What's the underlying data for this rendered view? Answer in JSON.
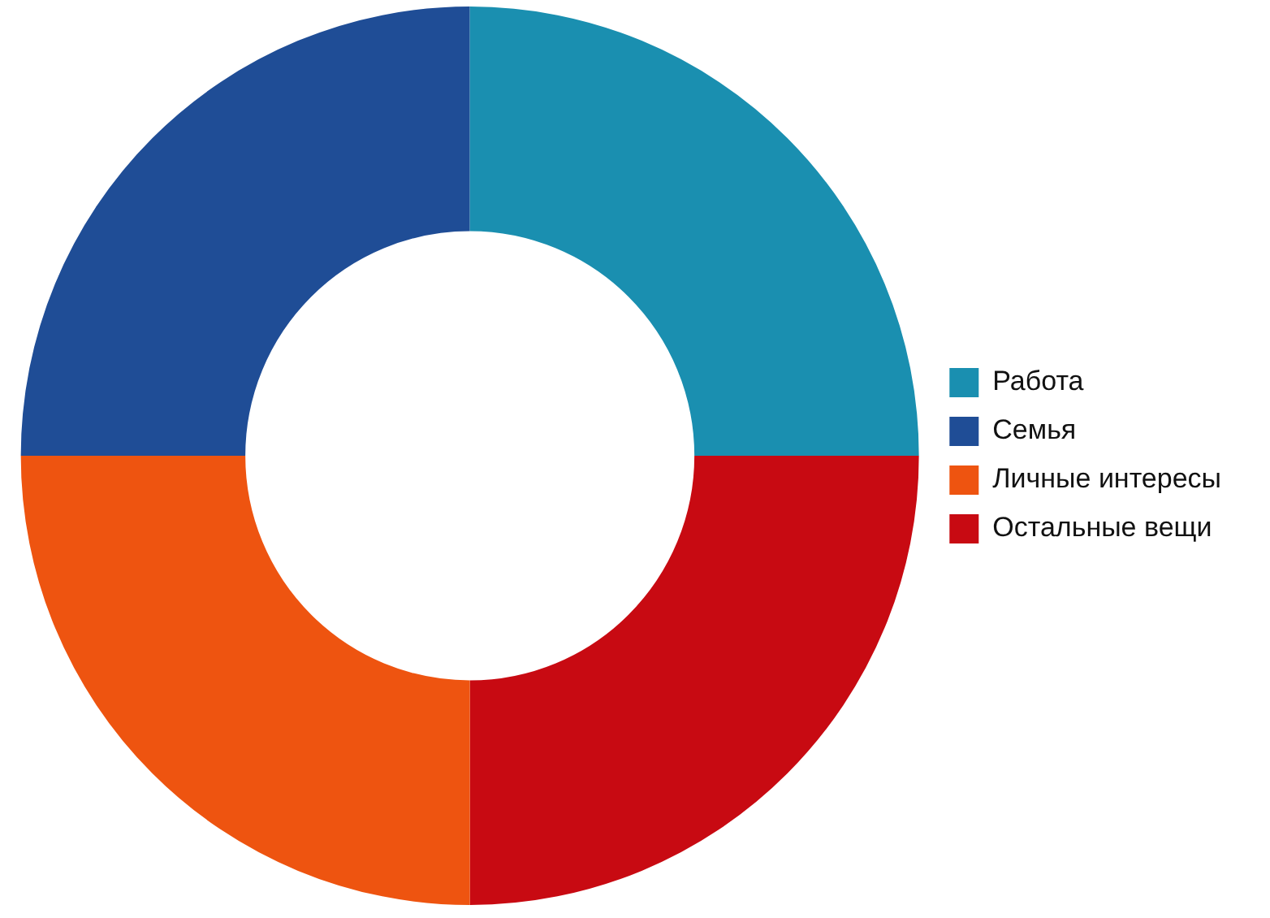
{
  "chart_data": {
    "type": "donut",
    "categories": [
      "Работа",
      "Семья",
      "Личные интересы",
      "Остальные вещи"
    ],
    "values": [
      25,
      25,
      25,
      25
    ],
    "colors": [
      "#1a8fb0",
      "#1f4d96",
      "#ee5410",
      "#c80a12"
    ],
    "legend": "right"
  }
}
